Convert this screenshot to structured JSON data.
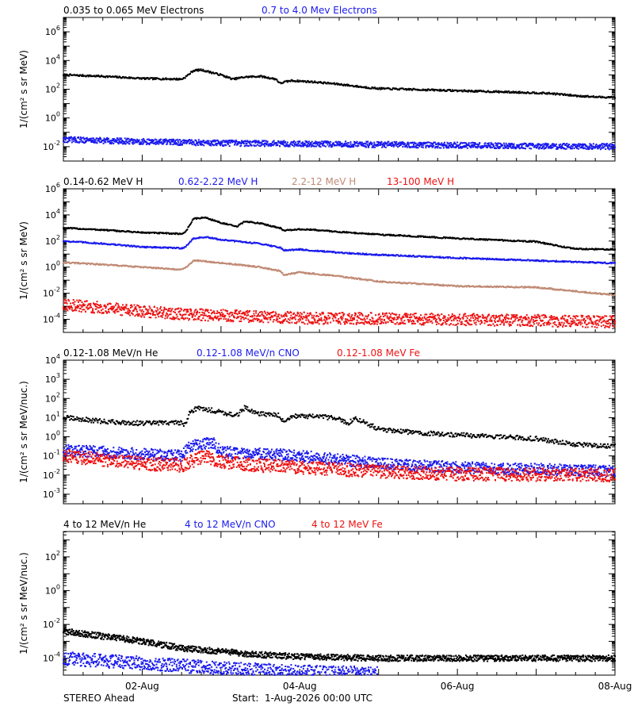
{
  "footer": {
    "spacecraft": "STEREO Ahead",
    "start": "Start:  1-Aug-2026 00:00 UTC"
  },
  "colors": {
    "black": "#000000",
    "blue": "#1a1aee",
    "tan": "#c08a74",
    "red": "#ee1111"
  },
  "chart_data": [
    {
      "type": "scatter",
      "y_scale": "log",
      "ylabel": "1/(cm² s sr MeV)",
      "ytick_exponents": [
        -2,
        0,
        2,
        4,
        6
      ],
      "ylim_exponent": [
        -3,
        7
      ],
      "xlim_days": [
        0,
        7
      ],
      "xticks": [
        {
          "day": 1,
          "label": "02-Aug"
        },
        {
          "day": 3,
          "label": "04-Aug"
        },
        {
          "day": 5,
          "label": "06-Aug"
        },
        {
          "day": 7,
          "label": "08-Aug"
        }
      ],
      "show_xtick_labels": false,
      "series": [
        {
          "name": "0.035 to 0.065 MeV Electrons",
          "color": "black",
          "noise": 0.06,
          "points": [
            [
              0,
              3.0
            ],
            [
              0.5,
              2.9
            ],
            [
              1.0,
              2.75
            ],
            [
              1.5,
              2.7
            ],
            [
              1.55,
              2.85
            ],
            [
              1.65,
              3.3
            ],
            [
              1.75,
              3.35
            ],
            [
              2.0,
              3.0
            ],
            [
              2.15,
              2.7
            ],
            [
              2.3,
              2.85
            ],
            [
              2.5,
              2.9
            ],
            [
              2.7,
              2.7
            ],
            [
              2.75,
              2.4
            ],
            [
              2.8,
              2.5
            ],
            [
              2.9,
              2.6
            ],
            [
              3.2,
              2.5
            ],
            [
              3.5,
              2.35
            ],
            [
              3.8,
              2.15
            ],
            [
              4.0,
              2.05
            ],
            [
              5.0,
              1.9
            ],
            [
              6.0,
              1.75
            ],
            [
              6.2,
              1.7
            ],
            [
              6.5,
              1.55
            ],
            [
              6.8,
              1.45
            ],
            [
              7.0,
              1.45
            ]
          ]
        },
        {
          "name": "0.7 to 4.0 Mev Electrons",
          "color": "blue",
          "noise": 0.2,
          "points": [
            [
              0,
              -1.5
            ],
            [
              1.0,
              -1.65
            ],
            [
              2.0,
              -1.75
            ],
            [
              4.0,
              -1.85
            ],
            [
              6.0,
              -1.95
            ],
            [
              7.0,
              -2.0
            ]
          ]
        }
      ]
    },
    {
      "type": "scatter",
      "y_scale": "log",
      "ylabel": "1/(cm² s sr MeV)",
      "ytick_exponents": [
        -4,
        -2,
        0,
        2,
        4,
        6
      ],
      "ylim_exponent": [
        -5,
        6
      ],
      "xlim_days": [
        0,
        7
      ],
      "xticks": [
        {
          "day": 1,
          "label": "02-Aug"
        },
        {
          "day": 3,
          "label": "04-Aug"
        },
        {
          "day": 5,
          "label": "06-Aug"
        },
        {
          "day": 7,
          "label": "08-Aug"
        }
      ],
      "show_xtick_labels": false,
      "series": [
        {
          "name": "0.14-0.62 MeV H",
          "color": "black",
          "noise": 0.05,
          "points": [
            [
              0,
              3.0
            ],
            [
              0.5,
              2.85
            ],
            [
              1.0,
              2.65
            ],
            [
              1.5,
              2.55
            ],
            [
              1.55,
              2.7
            ],
            [
              1.65,
              3.7
            ],
            [
              1.8,
              3.8
            ],
            [
              2.0,
              3.4
            ],
            [
              2.2,
              3.1
            ],
            [
              2.3,
              3.5
            ],
            [
              2.5,
              3.35
            ],
            [
              2.75,
              3.0
            ],
            [
              2.8,
              2.8
            ],
            [
              3.0,
              2.9
            ],
            [
              3.2,
              2.85
            ],
            [
              3.5,
              2.7
            ],
            [
              4.0,
              2.5
            ],
            [
              5.0,
              2.2
            ],
            [
              6.0,
              1.95
            ],
            [
              6.3,
              1.6
            ],
            [
              6.5,
              1.4
            ],
            [
              7.0,
              1.35
            ]
          ]
        },
        {
          "name": "0.62-2.22 MeV H",
          "color": "blue",
          "noise": 0.05,
          "points": [
            [
              0,
              2.0
            ],
            [
              0.5,
              1.8
            ],
            [
              1.0,
              1.55
            ],
            [
              1.5,
              1.45
            ],
            [
              1.55,
              1.55
            ],
            [
              1.65,
              2.2
            ],
            [
              1.8,
              2.3
            ],
            [
              2.0,
              2.1
            ],
            [
              2.5,
              1.8
            ],
            [
              2.75,
              1.5
            ],
            [
              2.8,
              1.3
            ],
            [
              3.0,
              1.35
            ],
            [
              3.5,
              1.1
            ],
            [
              4.0,
              0.95
            ],
            [
              5.0,
              0.7
            ],
            [
              6.0,
              0.5
            ],
            [
              7.0,
              0.3
            ]
          ]
        },
        {
          "name": "2.2-12 MeV H",
          "color": "tan",
          "noise": 0.05,
          "points": [
            [
              0,
              0.35
            ],
            [
              0.5,
              0.2
            ],
            [
              1.0,
              0.0
            ],
            [
              1.5,
              -0.2
            ],
            [
              1.55,
              -0.05
            ],
            [
              1.65,
              0.5
            ],
            [
              1.8,
              0.45
            ],
            [
              2.5,
              0.0
            ],
            [
              2.75,
              -0.3
            ],
            [
              2.8,
              -0.6
            ],
            [
              3.0,
              -0.4
            ],
            [
              3.5,
              -0.7
            ],
            [
              4.0,
              -1.1
            ],
            [
              5.0,
              -1.45
            ],
            [
              6.0,
              -1.55
            ],
            [
              6.5,
              -1.85
            ],
            [
              7.0,
              -2.15
            ]
          ]
        },
        {
          "name": "13-100 MeV H",
          "color": "red",
          "noise": 0.45,
          "points": [
            [
              0,
              -2.9
            ],
            [
              0.5,
              -3.1
            ],
            [
              1.0,
              -3.4
            ],
            [
              1.5,
              -3.6
            ],
            [
              2.0,
              -3.7
            ],
            [
              3.0,
              -3.9
            ],
            [
              5.0,
              -4.0
            ],
            [
              7.0,
              -4.2
            ]
          ]
        }
      ]
    },
    {
      "type": "scatter",
      "y_scale": "log",
      "ylabel": "1/(cm² s sr MeV/nuc.)",
      "ytick_exponents": [
        -3,
        -2,
        -1,
        0,
        1,
        2,
        3,
        4
      ],
      "ylim_exponent": [
        -3.5,
        4
      ],
      "xlim_days": [
        0,
        7
      ],
      "xticks": [
        {
          "day": 1,
          "label": "02-Aug"
        },
        {
          "day": 3,
          "label": "04-Aug"
        },
        {
          "day": 5,
          "label": "06-Aug"
        },
        {
          "day": 7,
          "label": "08-Aug"
        }
      ],
      "show_xtick_labels": false,
      "series": [
        {
          "name": "0.12-1.08 MeV/n He",
          "color": "black",
          "noise": 0.12,
          "points": [
            [
              0,
              1.0
            ],
            [
              0.5,
              0.8
            ],
            [
              1.0,
              0.7
            ],
            [
              1.5,
              0.75
            ],
            [
              1.55,
              0.6
            ],
            [
              1.6,
              1.3
            ],
            [
              1.7,
              1.5
            ],
            [
              2.0,
              1.3
            ],
            [
              2.2,
              1.1
            ],
            [
              2.3,
              1.5
            ],
            [
              2.5,
              1.2
            ],
            [
              2.75,
              1.1
            ],
            [
              2.8,
              0.7
            ],
            [
              2.9,
              1.1
            ],
            [
              3.4,
              1.0
            ],
            [
              3.5,
              0.9
            ],
            [
              3.6,
              0.7
            ],
            [
              3.7,
              0.95
            ],
            [
              3.8,
              0.8
            ],
            [
              4.0,
              0.4
            ],
            [
              4.5,
              0.2
            ],
            [
              5.0,
              0.1
            ],
            [
              6.0,
              -0.1
            ],
            [
              6.5,
              -0.4
            ],
            [
              7.0,
              -0.5
            ]
          ]
        },
        {
          "name": "0.12-1.08 MeV/n CNO",
          "color": "blue",
          "noise": 0.3,
          "points": [
            [
              0,
              -0.7
            ],
            [
              0.5,
              -0.8
            ],
            [
              1.0,
              -0.9
            ],
            [
              1.5,
              -1.0
            ],
            [
              1.6,
              -0.5
            ],
            [
              1.9,
              -0.3
            ],
            [
              2.0,
              -0.8
            ],
            [
              2.5,
              -0.9
            ],
            [
              3.0,
              -1.0
            ],
            [
              3.5,
              -1.2
            ],
            [
              4.0,
              -1.4
            ],
            [
              5.0,
              -1.6
            ],
            [
              6.0,
              -1.7
            ],
            [
              7.0,
              -1.8
            ]
          ]
        },
        {
          "name": "0.12-1.08 MeV Fe",
          "color": "red",
          "noise": 0.35,
          "points": [
            [
              0,
              -1.0
            ],
            [
              0.5,
              -1.2
            ],
            [
              1.0,
              -1.4
            ],
            [
              1.5,
              -1.5
            ],
            [
              1.8,
              -1.0
            ],
            [
              2.0,
              -1.3
            ],
            [
              2.5,
              -1.5
            ],
            [
              3.0,
              -1.6
            ],
            [
              4.0,
              -1.8
            ],
            [
              5.0,
              -1.95
            ],
            [
              7.0,
              -2.0
            ]
          ]
        }
      ]
    },
    {
      "type": "scatter",
      "y_scale": "log",
      "ylabel": "1/(cm² s sr MeV/nuc.)",
      "ytick_exponents": [
        -4,
        -2,
        0,
        2
      ],
      "ylim_exponent": [
        -5,
        3.5
      ],
      "xlim_days": [
        0,
        7
      ],
      "xticks": [
        {
          "day": 1,
          "label": "02-Aug"
        },
        {
          "day": 3,
          "label": "04-Aug"
        },
        {
          "day": 5,
          "label": "06-Aug"
        },
        {
          "day": 7,
          "label": "08-Aug"
        }
      ],
      "show_xtick_labels": true,
      "series": [
        {
          "name": "4 to 12 MeV/n He",
          "color": "black",
          "noise": 0.18,
          "points": [
            [
              0,
              -2.4
            ],
            [
              0.5,
              -2.7
            ],
            [
              1.0,
              -3.0
            ],
            [
              1.5,
              -3.4
            ],
            [
              2.0,
              -3.6
            ],
            [
              2.5,
              -3.8
            ],
            [
              3.0,
              -3.9
            ],
            [
              4.0,
              -4.0
            ],
            [
              7.0,
              -4.0
            ]
          ]
        },
        {
          "name": "4 to 12 MeV/n CNO",
          "color": "blue",
          "noise": 0.4,
          "points": [
            [
              0,
              -4.0
            ],
            [
              1.0,
              -4.3
            ],
            [
              2.0,
              -4.6
            ],
            [
              3.0,
              -4.8
            ],
            [
              4.0,
              -4.9
            ]
          ]
        },
        {
          "name": "4 to 12 MeV Fe",
          "color": "red",
          "noise": 0.0,
          "points": []
        }
      ]
    }
  ]
}
